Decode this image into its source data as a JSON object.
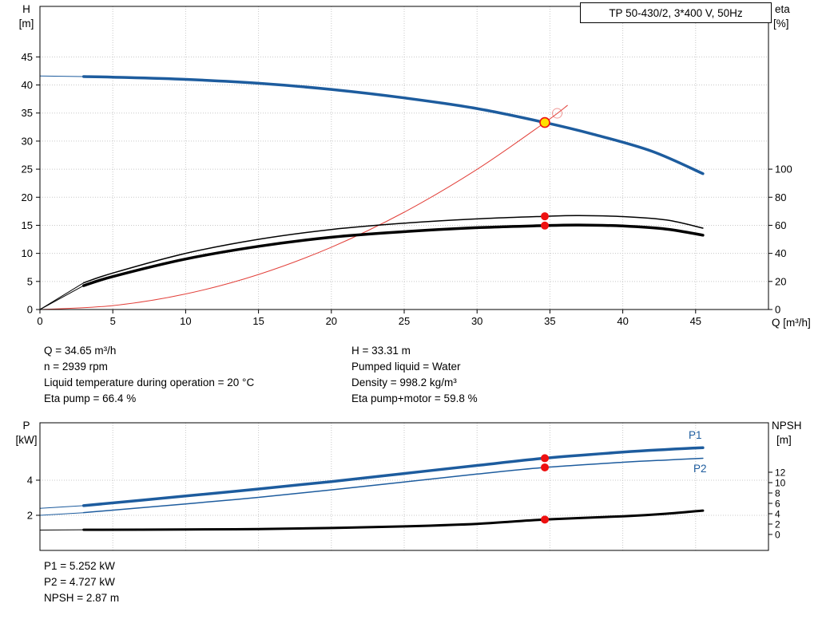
{
  "colors": {
    "curve_blue": "#1d5c9e",
    "curve_black": "#000000",
    "curve_red": "#e2403a",
    "dot_red": "#ee1111",
    "duty_fill": "#ffe000",
    "grid": "#c8c8c8",
    "axis": "#000000"
  },
  "info_top": {
    "left": [
      "Q = 34.65 m³/h",
      "n = 2939 rpm",
      "Liquid temperature during operation = 20 °C",
      "Eta pump = 66.4 %"
    ],
    "right": [
      "H = 33.31 m",
      "Pumped liquid = Water",
      "Density = 998.2 kg/m³",
      "Eta pump+motor = 59.8 %"
    ]
  },
  "info_bottom": [
    "P1 = 5.252 kW",
    "P2 = 4.727 kW",
    "NPSH = 2.87 m"
  ],
  "chart_data": [
    {
      "type": "line",
      "title": "TP 50-430/2, 3*400 V, 50Hz",
      "x_axis": {
        "label": "Q [m³/h]",
        "domain": [
          0,
          50
        ],
        "ticks": [
          0,
          5,
          10,
          15,
          20,
          25,
          30,
          35,
          40,
          45
        ],
        "show_tick_labels": true
      },
      "y_left": {
        "name": "H",
        "unit": "[m]",
        "domain": [
          0,
          54
        ],
        "ticks": [
          0,
          5,
          10,
          15,
          20,
          25,
          30,
          35,
          40,
          45
        ]
      },
      "y_right": {
        "name": "eta",
        "unit": "[%]",
        "domain": [
          0,
          216
        ],
        "ticks": [
          0,
          20,
          40,
          60,
          80,
          100
        ]
      },
      "series": [
        {
          "name": "head-curve",
          "axis": "left",
          "color_key": "curve_blue",
          "width": 3.5,
          "lead_in": [
            0,
            41.6
          ],
          "points": [
            [
              3,
              41.5
            ],
            [
              5,
              41.4
            ],
            [
              10,
              41.0
            ],
            [
              15,
              40.3
            ],
            [
              20,
              39.2
            ],
            [
              25,
              37.7
            ],
            [
              30,
              35.8
            ],
            [
              34.65,
              33.31
            ],
            [
              38,
              31.2
            ],
            [
              42,
              28.2
            ],
            [
              45.5,
              24.2
            ]
          ]
        },
        {
          "name": "system-curve",
          "axis": "left",
          "color_key": "curve_red",
          "width": 1,
          "points": [
            [
              0,
              0
            ],
            [
              5,
              0.69
            ],
            [
              10,
              2.77
            ],
            [
              15,
              6.24
            ],
            [
              20,
              11.1
            ],
            [
              25,
              17.34
            ],
            [
              30,
              24.97
            ],
            [
              34.65,
              33.31
            ],
            [
              36.2,
              36.35
            ]
          ]
        },
        {
          "name": "eta-pump-curve",
          "axis": "right",
          "color_key": "curve_black",
          "width": 1.5,
          "lead_in": [
            0,
            0
          ],
          "points": [
            [
              3,
              19
            ],
            [
              5,
              26
            ],
            [
              10,
              40
            ],
            [
              15,
              50
            ],
            [
              20,
              57
            ],
            [
              25,
              61.5
            ],
            [
              30,
              64.6
            ],
            [
              34.65,
              66.4
            ],
            [
              37,
              66.9
            ],
            [
              40,
              66.2
            ],
            [
              43,
              63.8
            ],
            [
              45.5,
              58
            ]
          ]
        },
        {
          "name": "eta-pump-motor-curve",
          "axis": "right",
          "color_key": "curve_black",
          "width": 3.5,
          "lead_in": [
            0,
            0
          ],
          "points": [
            [
              3,
              17
            ],
            [
              5,
              23.5
            ],
            [
              10,
              36
            ],
            [
              15,
              45
            ],
            [
              20,
              51.5
            ],
            [
              25,
              55.5
            ],
            [
              30,
              58.3
            ],
            [
              34.65,
              59.8
            ],
            [
              37,
              60.2
            ],
            [
              40,
              59.5
            ],
            [
              43,
              57.3
            ],
            [
              45.5,
              53
            ]
          ]
        }
      ],
      "markers": [
        {
          "name": "duty-point",
          "type": "duty",
          "axis": "left",
          "q": 34.65,
          "value": 33.31
        },
        {
          "name": "requested-duty-point",
          "type": "open",
          "axis": "left",
          "q": 35.5,
          "value": 34.95
        },
        {
          "name": "eta-pump-point",
          "type": "dot",
          "axis": "right",
          "q": 34.65,
          "value": 66.4
        },
        {
          "name": "eta-pump-motor-point",
          "type": "dot",
          "axis": "right",
          "q": 34.65,
          "value": 59.8
        }
      ]
    },
    {
      "type": "line",
      "title": "",
      "x_axis": {
        "label": "",
        "domain": [
          0,
          50
        ],
        "ticks": [
          0,
          5,
          10,
          15,
          20,
          25,
          30,
          35,
          40,
          45
        ],
        "show_tick_labels": false
      },
      "y_left": {
        "name": "P",
        "unit": "[kW]",
        "domain": [
          0,
          7.27
        ],
        "ticks": [
          2,
          4
        ]
      },
      "y_right": {
        "name": "NPSH",
        "unit": "[m]",
        "domain": [
          -3.08,
          21.54
        ],
        "ticks": [
          0,
          2,
          4,
          6,
          8,
          10,
          12
        ]
      },
      "series": [
        {
          "name": "p1-curve",
          "label": "P1",
          "axis": "left",
          "color_key": "curve_blue",
          "width": 3.5,
          "lead_in": [
            0,
            2.4
          ],
          "points": [
            [
              3,
              2.55
            ],
            [
              10,
              3.1
            ],
            [
              15,
              3.5
            ],
            [
              20,
              3.92
            ],
            [
              25,
              4.38
            ],
            [
              30,
              4.84
            ],
            [
              34.65,
              5.252
            ],
            [
              40,
              5.6
            ],
            [
              43,
              5.75
            ],
            [
              45.5,
              5.85
            ]
          ]
        },
        {
          "name": "p2-curve",
          "label": "P2",
          "axis": "left",
          "color_key": "curve_blue",
          "width": 1.5,
          "lead_in": [
            0,
            2.0
          ],
          "points": [
            [
              3,
              2.15
            ],
            [
              10,
              2.65
            ],
            [
              15,
              3.02
            ],
            [
              20,
              3.45
            ],
            [
              25,
              3.9
            ],
            [
              30,
              4.35
            ],
            [
              34.65,
              4.727
            ],
            [
              40,
              5.02
            ],
            [
              43,
              5.15
            ],
            [
              45.5,
              5.25
            ]
          ]
        },
        {
          "name": "npsh-curve",
          "axis": "right",
          "color_key": "curve_black",
          "width": 3,
          "lead_in": [
            0,
            0.85
          ],
          "points": [
            [
              3,
              0.9
            ],
            [
              10,
              0.95
            ],
            [
              15,
              1.05
            ],
            [
              20,
              1.25
            ],
            [
              25,
              1.55
            ],
            [
              30,
              2.05
            ],
            [
              34.65,
              2.87
            ],
            [
              40,
              3.5
            ],
            [
              43,
              4.0
            ],
            [
              45.5,
              4.6
            ]
          ]
        }
      ],
      "markers": [
        {
          "name": "p1-point",
          "type": "dot",
          "axis": "left",
          "q": 34.65,
          "value": 5.252
        },
        {
          "name": "p2-point",
          "type": "dot",
          "axis": "left",
          "q": 34.65,
          "value": 4.727
        },
        {
          "name": "npsh-point",
          "type": "dot",
          "axis": "right",
          "q": 34.65,
          "value": 2.87
        }
      ]
    }
  ]
}
